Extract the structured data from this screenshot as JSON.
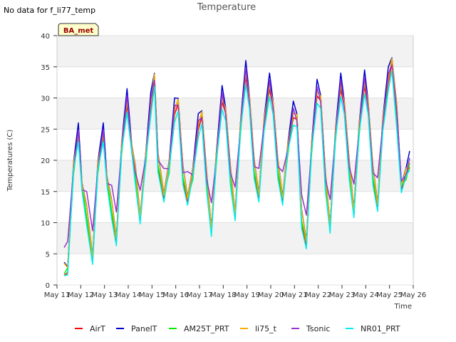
{
  "note": "No data for f_li77_temp",
  "chart_data": {
    "type": "line",
    "title": "Temperature",
    "xlabel": "Time",
    "ylabel": "Temperatures (C)",
    "ylim": [
      0,
      40
    ],
    "xlim": [
      0,
      15
    ],
    "yticks": [
      0,
      5,
      10,
      15,
      20,
      25,
      30,
      35,
      40
    ],
    "xticks": [
      0,
      1,
      2,
      3,
      4,
      5,
      6,
      7,
      8,
      9,
      10,
      11,
      12,
      13,
      14,
      15
    ],
    "xtick_labels": [
      "May 11",
      "May 12",
      "May 13",
      "May 14",
      "May 15",
      "May 16",
      "May 17",
      "May 18",
      "May 19",
      "May 20",
      "May 21",
      "May 22",
      "May 23",
      "May 24",
      "May 25",
      "May 26"
    ],
    "grid": "horizontal bands",
    "legend_position": "bottom",
    "site_label": "BA_met",
    "base_profile": {
      "x": [
        0.3,
        0.45,
        0.7,
        0.9,
        1.05,
        1.25,
        1.5,
        1.72,
        1.95,
        2.1,
        2.3,
        2.5,
        2.72,
        2.95,
        3.15,
        3.3,
        3.5,
        3.75,
        3.95,
        4.1,
        4.25,
        4.5,
        4.72,
        4.95,
        5.1,
        5.3,
        5.5,
        5.72,
        5.95,
        6.1,
        6.3,
        6.5,
        6.7,
        6.95,
        7.1,
        7.3,
        7.5,
        7.72,
        7.95,
        8.1,
        8.3,
        8.5,
        8.72,
        8.95,
        9.1,
        9.3,
        9.5,
        9.72,
        9.95,
        10.1,
        10.3,
        10.5,
        10.72,
        10.95,
        11.1,
        11.3,
        11.5,
        11.72,
        11.95,
        12.1,
        12.3,
        12.5,
        12.72,
        12.95,
        13.1,
        13.3,
        13.5,
        13.72,
        13.95,
        14.1,
        14.3,
        14.5,
        14.7,
        14.85
      ],
      "y": [
        2.5,
        2.8,
        19,
        24.5,
        16,
        11.5,
        4.5,
        19,
        24.5,
        17,
        12.5,
        7.5,
        22,
        30,
        22,
        18,
        11,
        21,
        29.5,
        33.5,
        20,
        14.5,
        19,
        28.5,
        29.5,
        18,
        14,
        18,
        26,
        27.5,
        17,
        9,
        20,
        30.5,
        28,
        18,
        11.5,
        25,
        34.5,
        30,
        19,
        14.5,
        26,
        32.5,
        29,
        19,
        14,
        22,
        28,
        27,
        11,
        7,
        22,
        31.5,
        30,
        17,
        9.5,
        24,
        32.5,
        29,
        19,
        12,
        25,
        33,
        29,
        18,
        13,
        26,
        33.5,
        36,
        28,
        16,
        18,
        20
      ]
    },
    "series": [
      {
        "name": "AirT",
        "color": "#ff0000",
        "offset": -0.8
      },
      {
        "name": "PanelT",
        "color": "#0000cc",
        "offset": 0.8
      },
      {
        "name": "AM25T_PRT",
        "color": "#00ee00",
        "offset": -0.4
      },
      {
        "name": "li75_t",
        "color": "#ffaa00",
        "offset": 0.3
      },
      {
        "name": "Tsonic",
        "color": "#9933cc",
        "offset": 0.0
      },
      {
        "name": "NR01_PRT",
        "color": "#00eeee",
        "offset": -1.2
      }
    ]
  }
}
